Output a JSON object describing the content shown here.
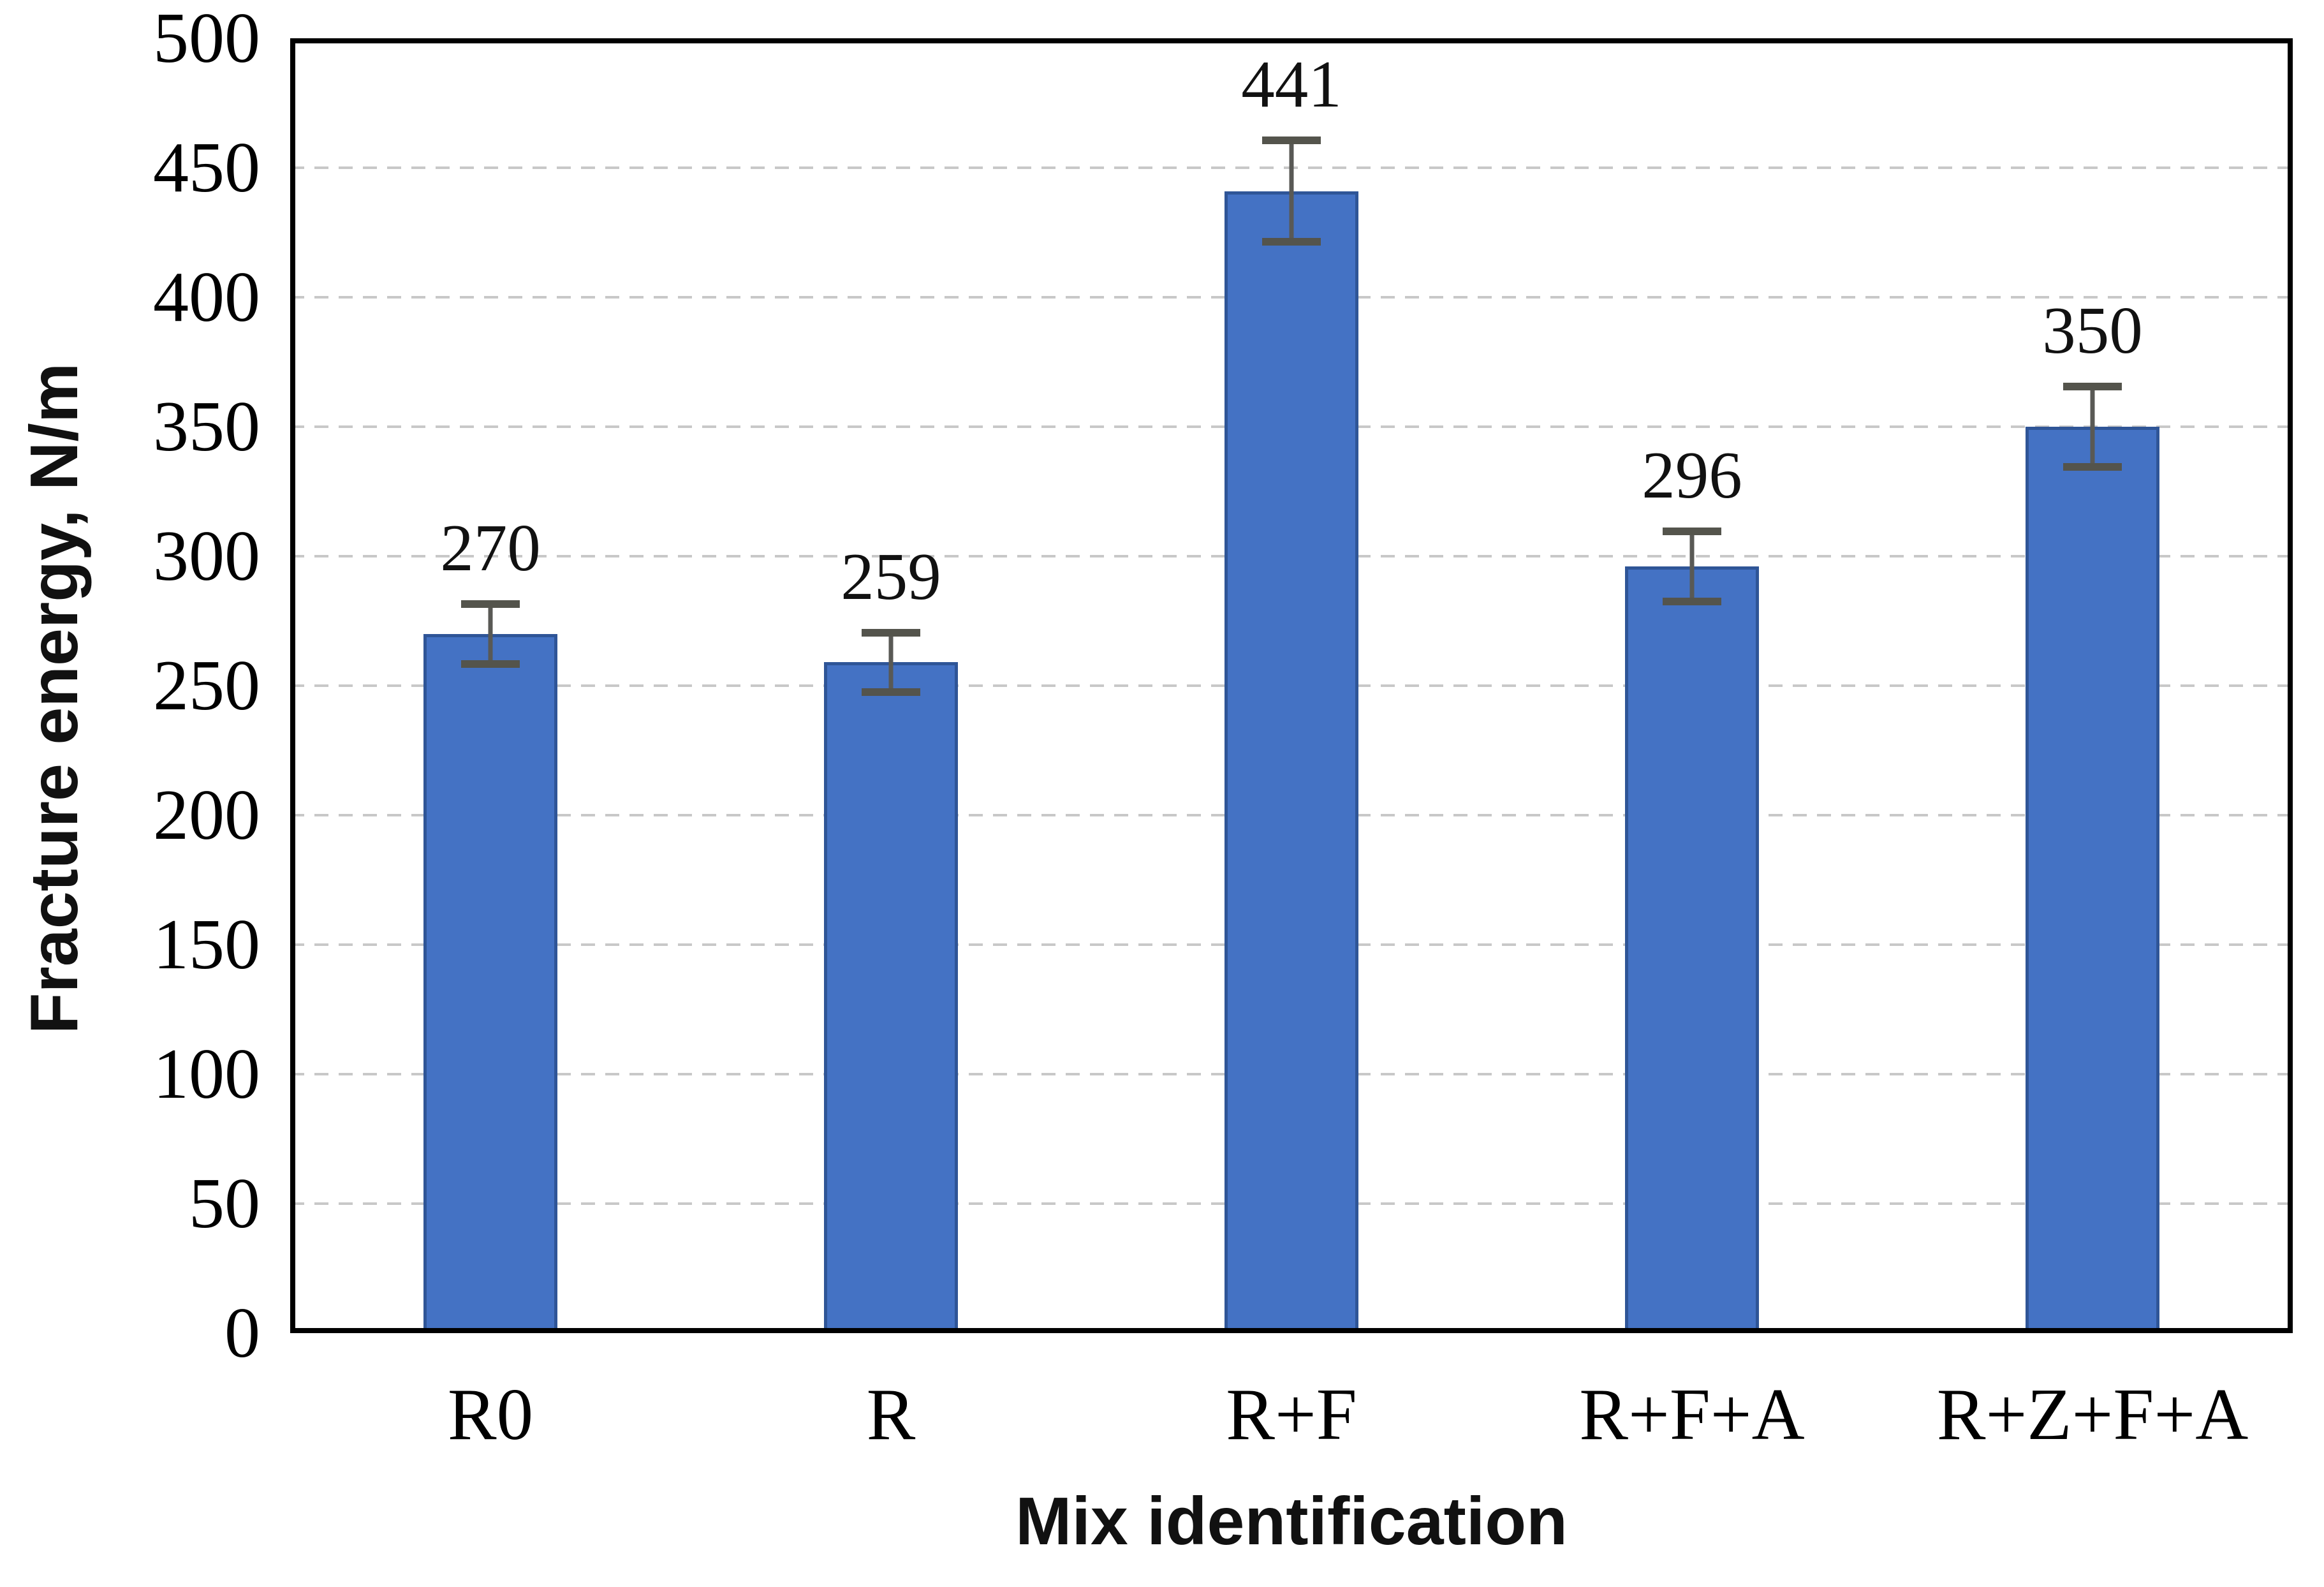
{
  "chart_data": {
    "type": "bar",
    "title": "",
    "categories": [
      "R0",
      "R",
      "R+F",
      "R+F+A",
      "R+Z+F+A"
    ],
    "values": [
      270,
      259,
      441,
      296,
      350
    ],
    "data_labels": [
      "270",
      "259",
      "441",
      "296",
      "350"
    ],
    "error_bars": [
      13,
      13,
      21,
      15,
      17
    ],
    "xlabel": "Mix identification",
    "ylabel": "Fracture energy, N/m",
    "ylim": [
      0,
      500
    ],
    "ytick_step": 50,
    "ytick_labels": [
      "0",
      "50",
      "100",
      "150",
      "200",
      "250",
      "300",
      "350",
      "400",
      "450",
      "500"
    ],
    "grid": "horizontal-dashed",
    "legend_position": "none",
    "bar_fill_color": "#4472C4",
    "bar_border_color": "#2F5597",
    "error_bar_color": "#595955",
    "gridline_color": "#C8C8C8",
    "axis_frame_color": "#000000",
    "background_color": "#FFFFFF"
  }
}
